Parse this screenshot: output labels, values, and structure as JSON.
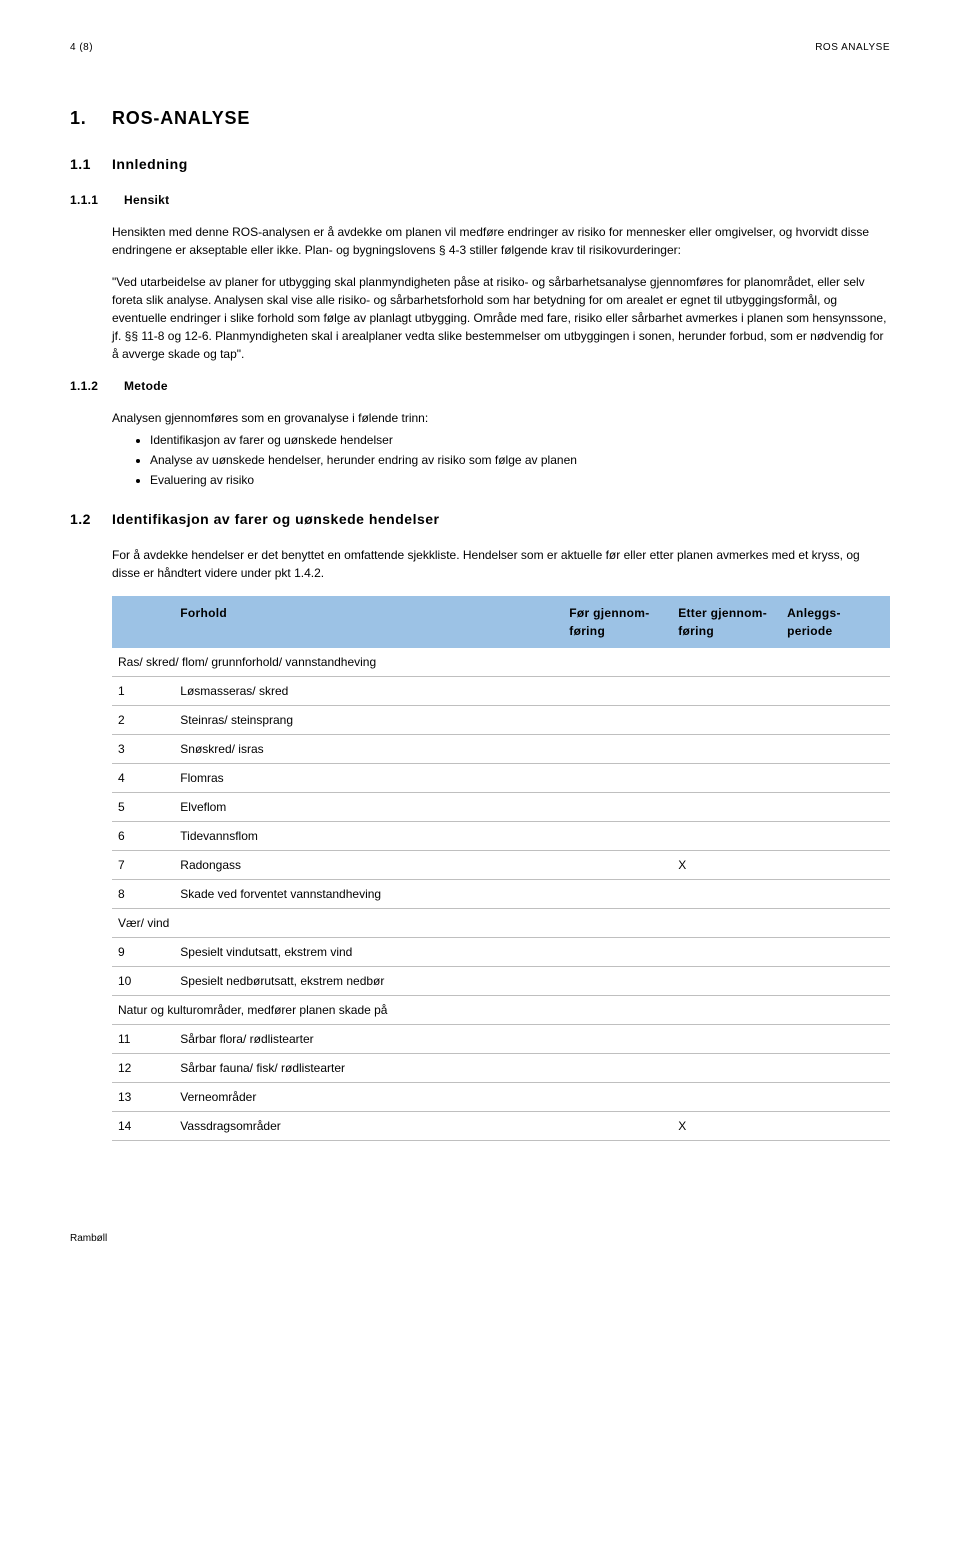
{
  "header": {
    "page_num": "4 (8)",
    "doc_title": "ROS ANALYSE"
  },
  "h1": {
    "num": "1.",
    "title": "ROS-ANALYSE"
  },
  "h1_1": {
    "num": "1.1",
    "title": "Innledning"
  },
  "h1_1_1": {
    "num": "1.1.1",
    "title": "Hensikt"
  },
  "p1": "Hensikten med denne ROS-analysen er å avdekke om planen vil medføre endringer av risiko for mennesker eller omgivelser, og hvorvidt disse endringene er akseptable eller ikke. Plan- og bygningslovens § 4-3 stiller følgende krav til risikovurderinger:",
  "p2": "\"Ved utarbeidelse av planer for utbygging skal planmyndigheten påse at risiko- og sårbarhetsanalyse gjennomføres for planområdet, eller selv foreta slik analyse. Analysen skal vise alle risiko- og sårbarhetsforhold som har betydning for om arealet er egnet til utbyggingsformål, og eventuelle endringer i slike forhold som følge av planlagt utbygging. Område med fare, risiko eller sårbarhet avmerkes i planen som hensynssone, jf. §§ 11-8 og 12-6. Planmyndigheten skal i arealplaner vedta slike bestemmelser om utbyggingen i sonen, herunder forbud, som er nødvendig for å avverge skade og tap\".",
  "h1_1_2": {
    "num": "1.1.2",
    "title": "Metode"
  },
  "p3": "Analysen gjennomføres som en grovanalyse i følende trinn:",
  "bullets": [
    "Identifikasjon av farer og uønskede hendelser",
    "Analyse av uønskede hendelser, herunder endring av risiko som følge av planen",
    "Evaluering av risiko"
  ],
  "h1_2": {
    "num": "1.2",
    "title": "Identifikasjon av farer og uønskede hendelser"
  },
  "p4": "For å avdekke hendelser er det benyttet en omfattende sjekkliste. Hendelser som er aktuelle før eller etter planen avmerkes med et kryss, og disse er håndtert videre under pkt 1.4.2.",
  "table": {
    "columns": [
      "",
      "Forhold",
      "Før gjennom-føring",
      "Etter gjennom-føring",
      "Anleggs-periode"
    ],
    "rows": [
      {
        "type": "section",
        "label": "Ras/ skred/ flom/ grunnforhold/ vannstandheving"
      },
      {
        "type": "item",
        "num": "1",
        "label": "Løsmasseras/ skred",
        "before": "",
        "after": "",
        "build": ""
      },
      {
        "type": "item",
        "num": "2",
        "label": "Steinras/ steinsprang",
        "before": "",
        "after": "",
        "build": ""
      },
      {
        "type": "item",
        "num": "3",
        "label": "Snøskred/ isras",
        "before": "",
        "after": "",
        "build": ""
      },
      {
        "type": "item",
        "num": "4",
        "label": "Flomras",
        "before": "",
        "after": "",
        "build": ""
      },
      {
        "type": "item",
        "num": "5",
        "label": "Elveflom",
        "before": "",
        "after": "",
        "build": ""
      },
      {
        "type": "item",
        "num": "6",
        "label": "Tidevannsflom",
        "before": "",
        "after": "",
        "build": ""
      },
      {
        "type": "item",
        "num": "7",
        "label": "Radongass",
        "before": "",
        "after": "X",
        "build": ""
      },
      {
        "type": "item",
        "num": "8",
        "label": "Skade ved forventet vannstandheving",
        "before": "",
        "after": "",
        "build": ""
      },
      {
        "type": "section",
        "label": "Vær/ vind"
      },
      {
        "type": "item",
        "num": "9",
        "label": "Spesielt vindutsatt, ekstrem vind",
        "before": "",
        "after": "",
        "build": ""
      },
      {
        "type": "item",
        "num": "10",
        "label": "Spesielt nedbørutsatt, ekstrem nedbør",
        "before": "",
        "after": "",
        "build": ""
      },
      {
        "type": "section",
        "label": "Natur og kulturområder, medfører planen skade på"
      },
      {
        "type": "item",
        "num": "11",
        "label": "Sårbar flora/ rødlistearter",
        "before": "",
        "after": "",
        "build": ""
      },
      {
        "type": "item",
        "num": "12",
        "label": "Sårbar fauna/ fisk/ rødlistearter",
        "before": "",
        "after": "",
        "build": ""
      },
      {
        "type": "item",
        "num": "13",
        "label": "Verneområder",
        "before": "",
        "after": "",
        "build": ""
      },
      {
        "type": "item",
        "num": "14",
        "label": "Vassdragsområder",
        "before": "",
        "after": "X",
        "build": ""
      }
    ]
  },
  "footer": "Rambøll"
}
